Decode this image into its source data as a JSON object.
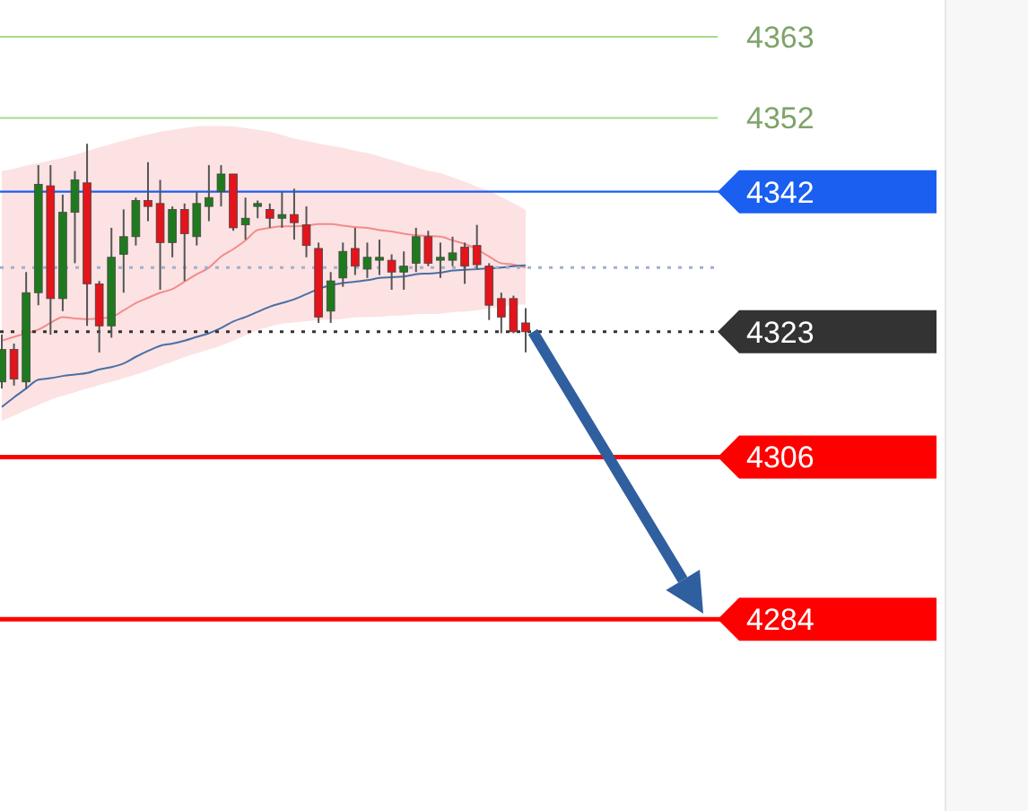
{
  "chart_data": {
    "type": "candlestick",
    "categories": [
      null,
      null,
      null,
      null,
      null,
      null,
      null,
      null,
      null,
      null,
      null,
      null,
      null,
      null,
      null,
      null,
      null,
      null,
      null,
      null,
      null,
      null,
      null,
      null,
      null,
      null,
      null,
      null,
      null,
      null,
      null,
      null,
      null,
      null,
      null,
      null,
      null,
      null,
      null,
      null,
      null,
      null,
      null,
      null
    ],
    "ohlc": [
      [
        4316.2,
        4322.6,
        4315.3,
        4320.6
      ],
      [
        4320.6,
        4321.4,
        4315.7,
        4316.6
      ],
      [
        4316.2,
        4331.1,
        4315.3,
        4328.3
      ],
      [
        4328.3,
        4345.6,
        4326.6,
        4343.0
      ],
      [
        4342.8,
        4345.6,
        4322.6,
        4327.5
      ],
      [
        4327.5,
        4341.6,
        4325.8,
        4339.2
      ],
      [
        4339.2,
        4344.8,
        4332.3,
        4343.6
      ],
      [
        4343.2,
        4348.5,
        4323.8,
        4329.5
      ],
      [
        4329.5,
        4329.9,
        4320.2,
        4323.8
      ],
      [
        4323.8,
        4337.1,
        4322.2,
        4333.1
      ],
      [
        4333.5,
        4339.6,
        4328.3,
        4335.9
      ],
      [
        4335.9,
        4341.2,
        4334.7,
        4340.8
      ],
      [
        4340.8,
        4346.0,
        4338.0,
        4340.0
      ],
      [
        4340.4,
        4343.6,
        4328.7,
        4335.1
      ],
      [
        4335.1,
        4340.0,
        4333.1,
        4339.6
      ],
      [
        4339.6,
        4340.4,
        4329.9,
        4336.3
      ],
      [
        4335.9,
        4342.0,
        4334.7,
        4340.4
      ],
      [
        4340.0,
        4345.6,
        4338.0,
        4341.2
      ],
      [
        4342.0,
        4345.6,
        4340.0,
        4344.4
      ],
      [
        4344.4,
        4344.4,
        4336.7,
        4337.1
      ],
      [
        4337.5,
        4341.2,
        4335.5,
        4338.4
      ],
      [
        4340.0,
        4340.8,
        4338.4,
        4340.4
      ],
      [
        4339.6,
        4340.4,
        4337.1,
        4338.4
      ],
      [
        4338.4,
        4342.0,
        4337.1,
        4338.9
      ],
      [
        4338.9,
        4342.4,
        4335.5,
        4337.8
      ],
      [
        4337.5,
        4340.0,
        4333.1,
        4334.7
      ],
      [
        4334.3,
        4335.1,
        4324.2,
        4325.0
      ],
      [
        4325.8,
        4331.1,
        4324.2,
        4329.9
      ],
      [
        4330.3,
        4335.1,
        4329.1,
        4333.9
      ],
      [
        4334.3,
        4337.1,
        4330.7,
        4331.9
      ],
      [
        4331.5,
        4335.1,
        4330.3,
        4333.1
      ],
      [
        4332.7,
        4335.5,
        4330.7,
        4333.1
      ],
      [
        4332.7,
        4333.5,
        4328.7,
        4331.1
      ],
      [
        4331.1,
        4333.9,
        4328.7,
        4331.9
      ],
      [
        4332.3,
        4337.1,
        4331.1,
        4335.9
      ],
      [
        4335.9,
        4336.7,
        4331.9,
        4332.3
      ],
      [
        4332.7,
        4335.1,
        4330.3,
        4333.1
      ],
      [
        4332.7,
        4335.9,
        4331.9,
        4333.7
      ],
      [
        4334.5,
        4335.1,
        4329.5,
        4331.9
      ],
      [
        4334.7,
        4337.5,
        4331.5,
        4332.1
      ],
      [
        4331.9,
        4332.3,
        4324.6,
        4326.6
      ],
      [
        4327.5,
        4328.3,
        4322.8,
        4325.0
      ],
      [
        4327.5,
        4327.9,
        4322.8,
        4323.0
      ],
      [
        4324.2,
        4326.2,
        4320.2,
        4323.0
      ]
    ],
    "series": [
      {
        "type": "line",
        "color": "#f28b8b",
        "values": [
          4321.8,
          4322.3,
          4322.8,
          4323.3,
          4324.2,
          4325.0,
          4324.8,
          4324.7,
          4324.8,
          4325.0,
          4325.9,
          4326.9,
          4327.6,
          4328.3,
          4328.8,
          4329.8,
          4330.8,
          4331.7,
          4333.2,
          4334.2,
          4335.4,
          4336.8,
          4337.1,
          4337.3,
          4337.3,
          4337.4,
          4337.6,
          4337.6,
          4337.4,
          4337.2,
          4337.1,
          4336.8,
          4336.6,
          4336.3,
          4336.1,
          4336.0,
          4335.9,
          4335.4,
          4334.9,
          4334.2,
          4333.2,
          4332.3,
          4332.1,
          4331.7
        ],
        "upper": [
          4344.8,
          4345.1,
          4345.6,
          4345.8,
          4346.3,
          4346.5,
          4347.0,
          4347.5,
          4348.0,
          4348.5,
          4348.9,
          4349.4,
          4349.7,
          4350.2,
          4350.4,
          4350.6,
          4350.9,
          4350.9,
          4350.9,
          4350.9,
          4350.6,
          4350.4,
          4350.2,
          4349.7,
          4349.2,
          4348.9,
          4348.5,
          4348.2,
          4348.0,
          4347.5,
          4347.3,
          4346.8,
          4346.3,
          4345.8,
          4345.3,
          4344.8,
          4344.6,
          4343.9,
          4343.4,
          4342.6,
          4342.2,
          4341.2,
          4340.5,
          4339.5
        ],
        "lower": [
          4310.9,
          4311.6,
          4312.4,
          4313.1,
          4313.8,
          4314.3,
          4314.8,
          4315.3,
          4315.8,
          4316.2,
          4316.7,
          4317.2,
          4317.7,
          4318.4,
          4318.9,
          4319.6,
          4320.1,
          4320.6,
          4321.1,
          4321.8,
          4322.5,
          4323.3,
          4323.7,
          4324.2,
          4324.2,
          4324.5,
          4324.5,
          4324.7,
          4324.7,
          4325.0,
          4325.0,
          4325.0,
          4325.2,
          4325.2,
          4325.4,
          4325.4,
          4325.4,
          4325.7,
          4325.7,
          4325.9,
          4326.2,
          4326.4,
          4326.7,
          4326.7
        ]
      },
      {
        "type": "line",
        "color": "#4a6fa5",
        "values": [
          4312.8,
          4314.1,
          4315.3,
          4316.5,
          4316.7,
          4317.0,
          4317.2,
          4317.4,
          4317.9,
          4318.2,
          4318.7,
          4319.6,
          4320.4,
          4321.1,
          4321.4,
          4321.8,
          4322.3,
          4322.8,
          4323.5,
          4324.4,
          4325.0,
          4325.7,
          4326.4,
          4326.9,
          4327.4,
          4328.1,
          4328.8,
          4329.3,
          4329.6,
          4329.8,
          4330.0,
          4330.3,
          4330.4,
          4330.5,
          4330.8,
          4330.9,
          4331.0,
          4331.3,
          4331.4,
          4331.5,
          4331.6,
          4331.7,
          4331.9,
          4332.0
        ]
      }
    ],
    "ylim": [
      4258,
      4368
    ],
    "ref_lines": [
      {
        "axis": "y",
        "value": 4363,
        "label": "4363",
        "color": "#a9d98c",
        "line_style": "solid"
      },
      {
        "axis": "y",
        "value": 4352,
        "label": "4352",
        "color": "#a9d98c",
        "line_style": "solid"
      },
      {
        "axis": "y",
        "value": 4342,
        "label": "4342",
        "color": "#1a5ff0",
        "line_style": "solid"
      },
      {
        "axis": "y",
        "value": 4331.7,
        "color": "#9fb0d0",
        "line_style": "dotted"
      },
      {
        "axis": "y",
        "value": 4323,
        "label": "4323",
        "color": "#333333",
        "line_style": "dotted"
      },
      {
        "axis": "y",
        "value": 4306,
        "label": "4306",
        "color": "#ff0000",
        "line_style": "solid"
      },
      {
        "axis": "y",
        "value": 4284,
        "label": "4284",
        "color": "#ff0000",
        "line_style": "solid"
      }
    ]
  }
}
